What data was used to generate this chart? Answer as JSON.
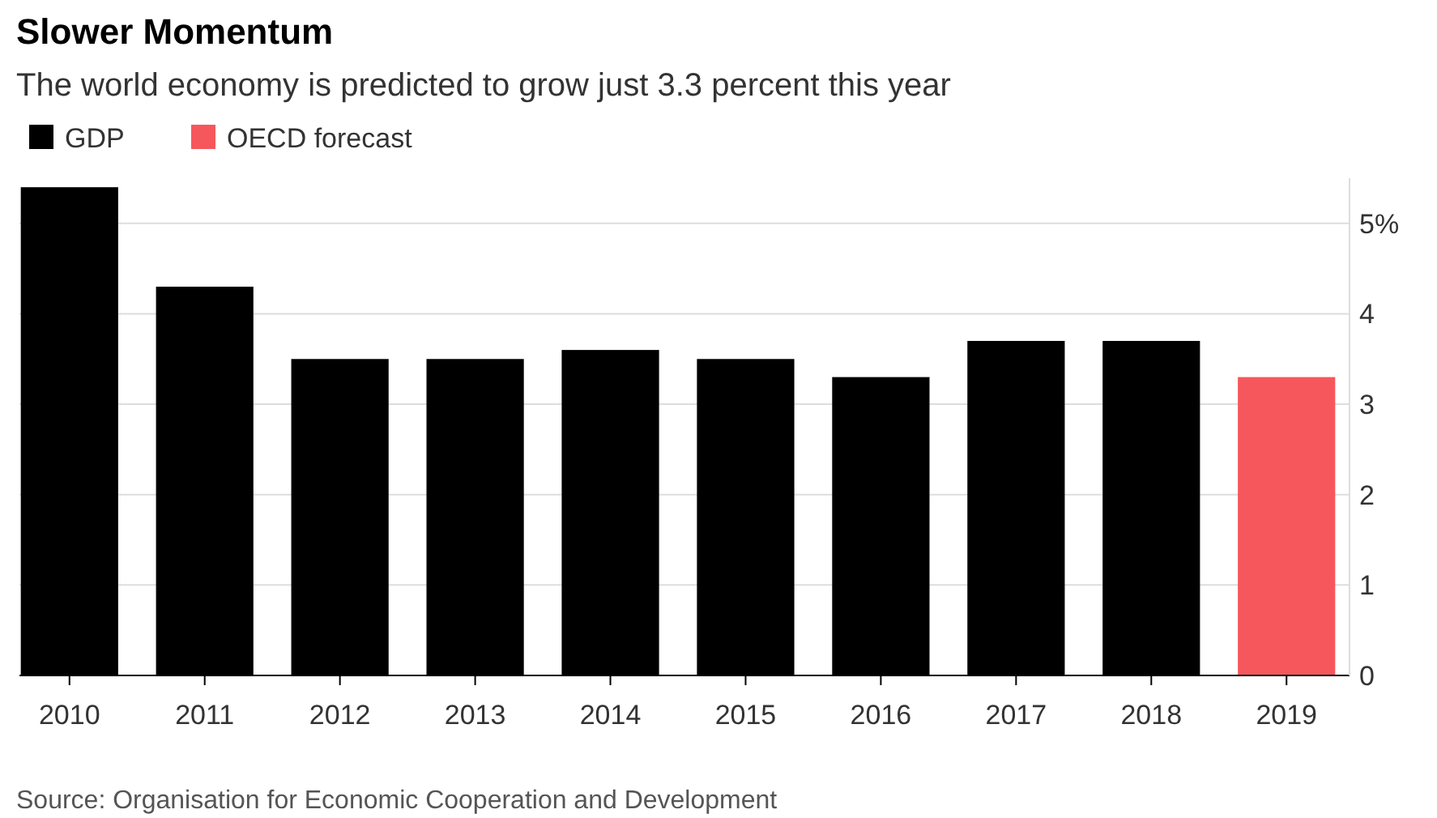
{
  "chart_data": {
    "type": "bar",
    "title": "Slower Momentum",
    "subtitle": "The world economy is predicted to grow just 3.3 percent this year",
    "categories": [
      "2010",
      "2011",
      "2012",
      "2013",
      "2014",
      "2015",
      "2016",
      "2017",
      "2018",
      "2019"
    ],
    "series": [
      {
        "name": "GDP",
        "color": "#000000",
        "values": [
          5.4,
          4.3,
          3.5,
          3.5,
          3.6,
          3.5,
          3.3,
          3.7,
          3.7,
          null
        ]
      },
      {
        "name": "OECD forecast",
        "color": "#f6575c",
        "values": [
          null,
          null,
          null,
          null,
          null,
          null,
          null,
          null,
          null,
          3.3
        ]
      }
    ],
    "stacked": true,
    "ylim": [
      0,
      5.5
    ],
    "yticks": [
      0,
      1,
      2,
      3,
      4,
      {
        "value": 5,
        "label": "5%"
      }
    ],
    "grid": "y",
    "legend": "top left",
    "annotations": [
      "Source: Organisation for Economic Cooperation and Development"
    ]
  }
}
